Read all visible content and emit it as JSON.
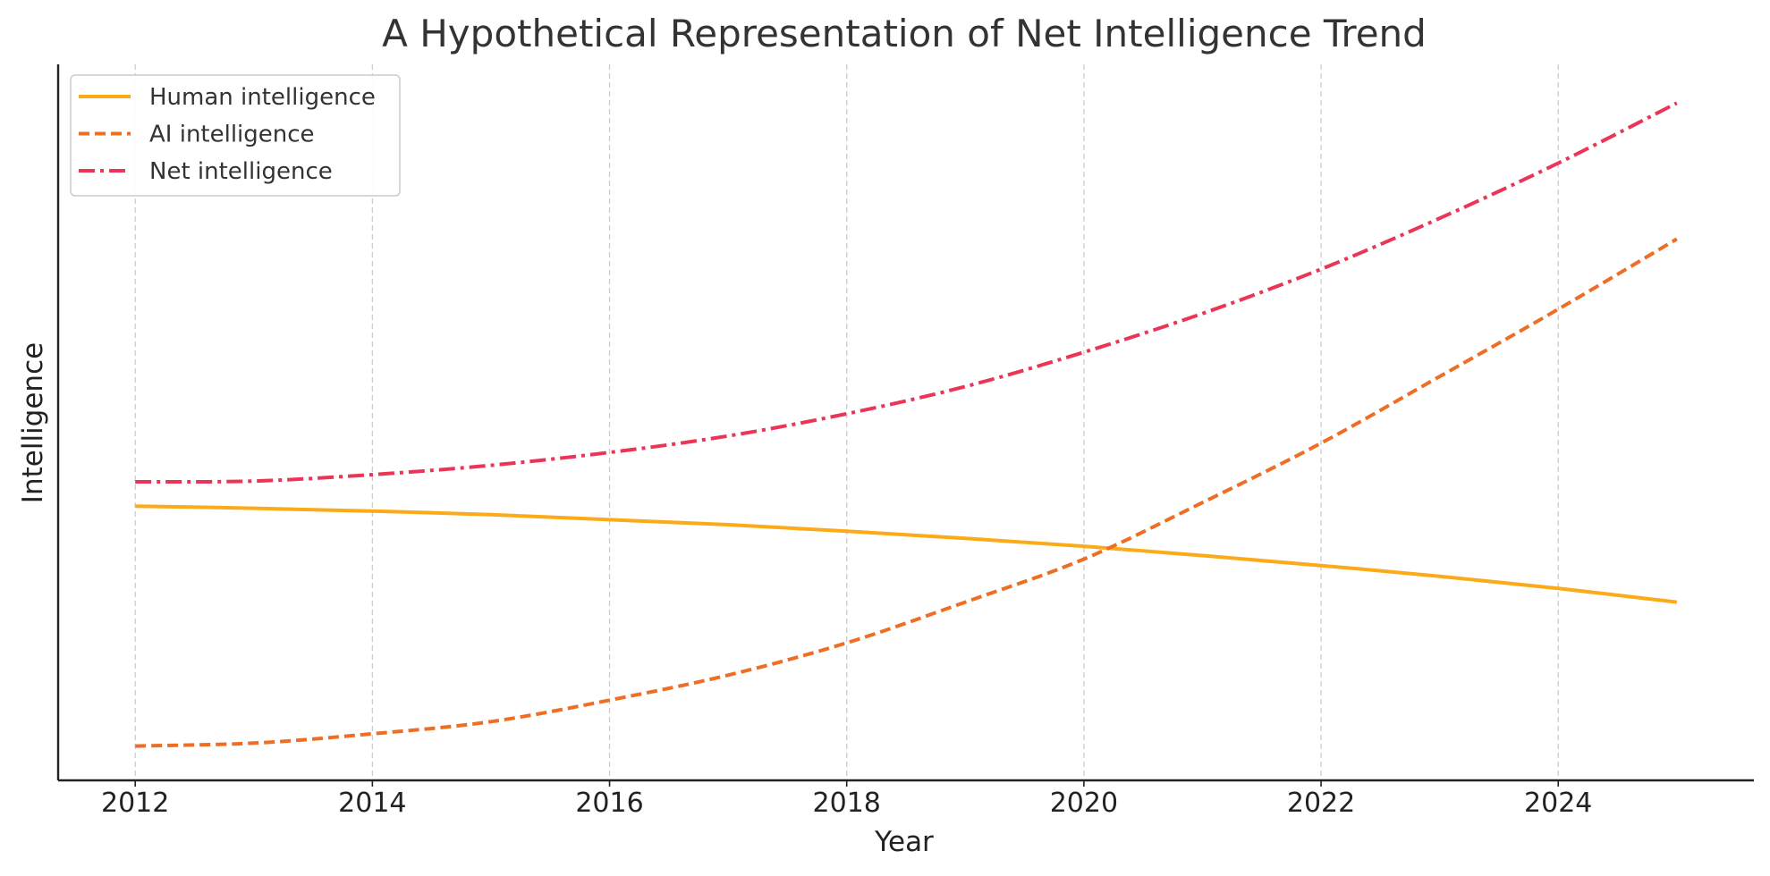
{
  "chart_data": {
    "type": "line",
    "title": "A Hypothetical Representation of Net Intelligence Trend",
    "xlabel": "Year",
    "ylabel": "Intelligence",
    "x": [
      2012,
      2013,
      2014,
      2015,
      2016,
      2017,
      2018,
      2019,
      2020,
      2021,
      2022,
      2023,
      2024,
      2025
    ],
    "xlim": [
      2011.35,
      2025.65
    ],
    "ylim": [
      0,
      100
    ],
    "y_ticks_shown": false,
    "grid": "vertical-dashed",
    "legend_position": "top-left",
    "x_ticks": [
      "2012",
      "2014",
      "2016",
      "2018",
      "2020",
      "2022",
      "2024"
    ],
    "series": [
      {
        "name": "Human intelligence",
        "color": "#FBAA19",
        "linestyle": "solid",
        "values": [
          38.3,
          38.0,
          37.6,
          37.1,
          36.4,
          35.7,
          34.8,
          33.8,
          32.7,
          31.4,
          30.0,
          28.5,
          26.8,
          24.9
        ]
      },
      {
        "name": "AI intelligence",
        "color": "#EE6E25",
        "linestyle": "dashed",
        "values": [
          4.8,
          5.2,
          6.5,
          8.2,
          11.2,
          14.7,
          19.2,
          24.9,
          30.9,
          38.8,
          47.1,
          56.4,
          65.8,
          75.6
        ]
      },
      {
        "name": "Net intelligence",
        "color": "#EB3456",
        "linestyle": "dashdot",
        "values": [
          41.7,
          41.8,
          42.7,
          44.0,
          45.8,
          48.1,
          51.2,
          55.0,
          59.8,
          65.2,
          71.4,
          78.5,
          86.2,
          94.6
        ]
      }
    ]
  }
}
